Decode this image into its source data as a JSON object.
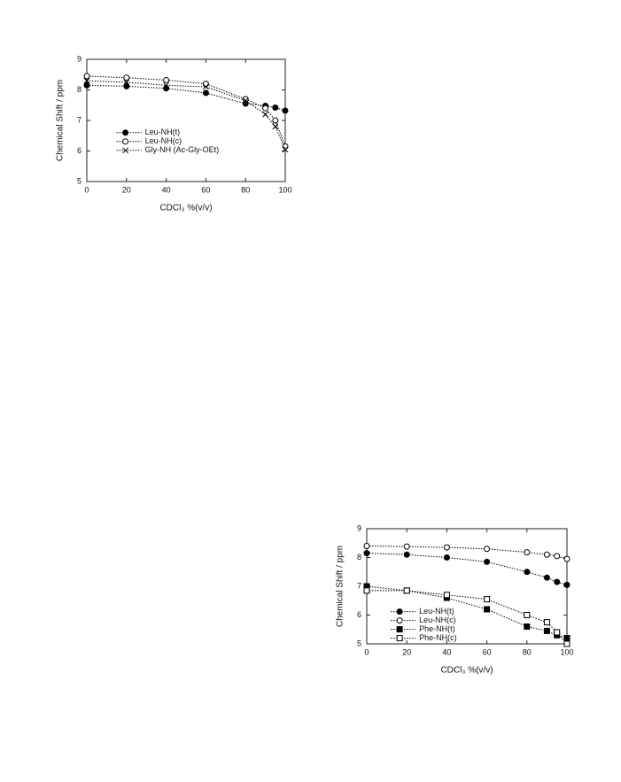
{
  "chart_data": [
    {
      "type": "line",
      "xlabel": "CDCl₃ %(v/v)",
      "ylabel": "Chemical Shift / ppm",
      "x": [
        0,
        20,
        40,
        60,
        80,
        90,
        95,
        100
      ],
      "xlim": [
        0,
        100
      ],
      "xticks": [
        0,
        20,
        40,
        60,
        80,
        100
      ],
      "ylim": [
        5,
        9
      ],
      "yticks": [
        5,
        6,
        7,
        8,
        9
      ],
      "legend": "center-left",
      "line_style": "dotted",
      "series": [
        {
          "name": "Leu-NH(t)",
          "color": "#000000",
          "marker": "filled-circle",
          "values": [
            8.15,
            8.12,
            8.05,
            7.9,
            7.55,
            7.48,
            7.42,
            7.32
          ]
        },
        {
          "name": "Leu-NH(c)",
          "color": "#000000",
          "marker": "open-circle",
          "values": [
            8.45,
            8.4,
            8.32,
            8.2,
            7.7,
            7.4,
            7.0,
            6.15
          ]
        },
        {
          "name": "Gly-NH (Ac-Gly-OEt)",
          "color": "#000000",
          "marker": "cross",
          "values": [
            8.3,
            8.25,
            8.15,
            8.1,
            7.65,
            7.2,
            6.8,
            6.05
          ]
        }
      ]
    },
    {
      "type": "line",
      "xlabel": "CDCl₃ %(v/v)",
      "ylabel": "Chemical Shift / ppm",
      "x": [
        0,
        20,
        40,
        60,
        80,
        90,
        95,
        100
      ],
      "xlim": [
        0,
        100
      ],
      "xticks": [
        0,
        20,
        40,
        60,
        80,
        100
      ],
      "ylim": [
        5,
        9
      ],
      "yticks": [
        5,
        6,
        7,
        8,
        9
      ],
      "legend": "lower-left",
      "line_style": "dotted",
      "series": [
        {
          "name": "Leu-NH(t)",
          "color": "#000000",
          "marker": "filled-circle",
          "values": [
            8.15,
            8.1,
            8.0,
            7.85,
            7.5,
            7.3,
            7.15,
            7.05
          ]
        },
        {
          "name": "Leu-NH(c)",
          "color": "#000000",
          "marker": "open-circle",
          "values": [
            8.4,
            8.38,
            8.35,
            8.3,
            8.18,
            8.1,
            8.05,
            7.95
          ]
        },
        {
          "name": "Phe-NH(t)",
          "color": "#000000",
          "marker": "filled-square",
          "values": [
            7.0,
            6.85,
            6.6,
            6.2,
            5.6,
            5.45,
            5.3,
            5.2
          ]
        },
        {
          "name": "Phe-NH(c)",
          "color": "#000000",
          "marker": "open-square",
          "values": [
            6.85,
            6.85,
            6.7,
            6.55,
            6.0,
            5.75,
            5.4,
            5.0
          ]
        }
      ]
    }
  ]
}
